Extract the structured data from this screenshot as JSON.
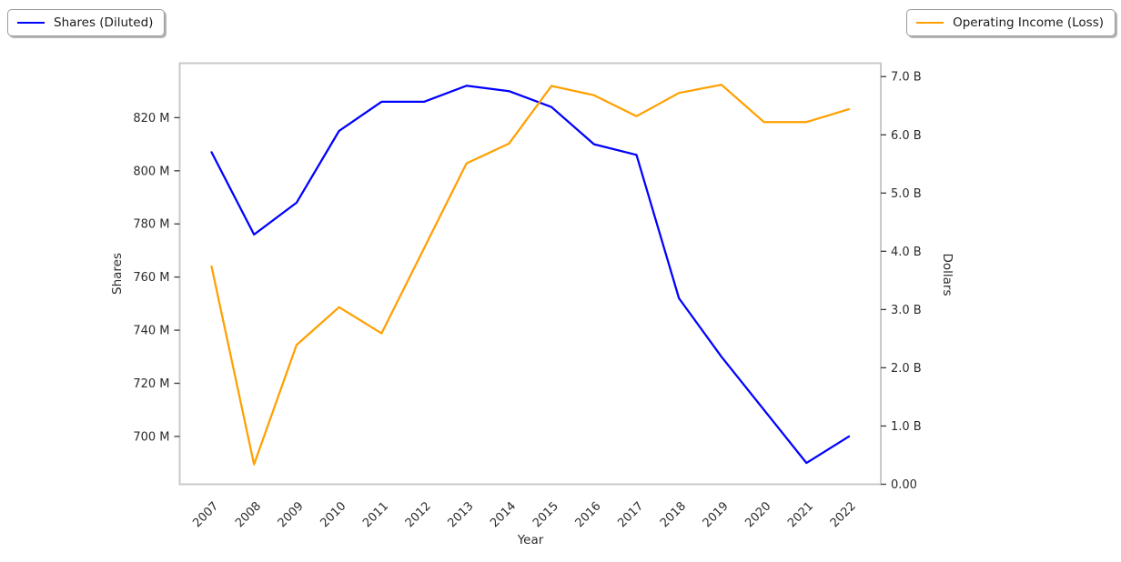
{
  "legend": {
    "left": {
      "label": "Shares (Diluted)",
      "color": "#0000ff"
    },
    "right": {
      "label": "Operating Income (Loss)",
      "color": "#ffa000"
    }
  },
  "chart_data": {
    "type": "line",
    "title": "",
    "x": [
      2007,
      2008,
      2009,
      2010,
      2011,
      2012,
      2013,
      2014,
      2015,
      2016,
      2017,
      2018,
      2019,
      2020,
      2021,
      2022
    ],
    "series": [
      {
        "name": "Shares (Diluted)",
        "yaxis": "left",
        "color": "#0000ff",
        "unit": "millions of shares",
        "values": [
          807,
          776,
          788,
          815,
          826,
          826,
          832,
          830,
          824,
          810,
          806,
          752,
          730,
          710,
          690,
          700
        ]
      },
      {
        "name": "Operating Income (Loss)",
        "yaxis": "right",
        "color": "#ffa000",
        "unit": "billions of dollars",
        "values": [
          3.74,
          0.34,
          2.39,
          3.04,
          2.59,
          4.05,
          5.51,
          5.85,
          6.84,
          6.68,
          6.32,
          6.72,
          6.86,
          6.22,
          6.22,
          6.44
        ]
      }
    ],
    "left_axis": {
      "label": "Shares",
      "tick_values": [
        700,
        720,
        740,
        760,
        780,
        800,
        820
      ],
      "tick_labels": [
        "700 M",
        "720 M",
        "740 M",
        "760 M",
        "780 M",
        "800 M",
        "820 M"
      ],
      "range": [
        682,
        840.5
      ]
    },
    "right_axis": {
      "label": "Dollars",
      "tick_values": [
        0,
        1,
        2,
        3,
        4,
        5,
        6,
        7
      ],
      "tick_labels": [
        "0.00",
        "1.0 B",
        "2.0 B",
        "3.0 B",
        "4.0 B",
        "5.0 B",
        "6.0 B",
        "7.0 B"
      ],
      "range": [
        0,
        7.23
      ]
    },
    "x_axis": {
      "label": "Year",
      "tick_labels": [
        "2007",
        "2008",
        "2009",
        "2010",
        "2011",
        "2012",
        "2013",
        "2014",
        "2015",
        "2016",
        "2017",
        "2018",
        "2019",
        "2020",
        "2021",
        "2022"
      ],
      "tick_rotation": 45,
      "range": [
        2006.25,
        2022.75
      ]
    },
    "grid": false,
    "legend_position": [
      "figure-top-left",
      "figure-top-right"
    ],
    "spine_color": "#c9c9c9",
    "tick_color": "#3a3a3a"
  }
}
